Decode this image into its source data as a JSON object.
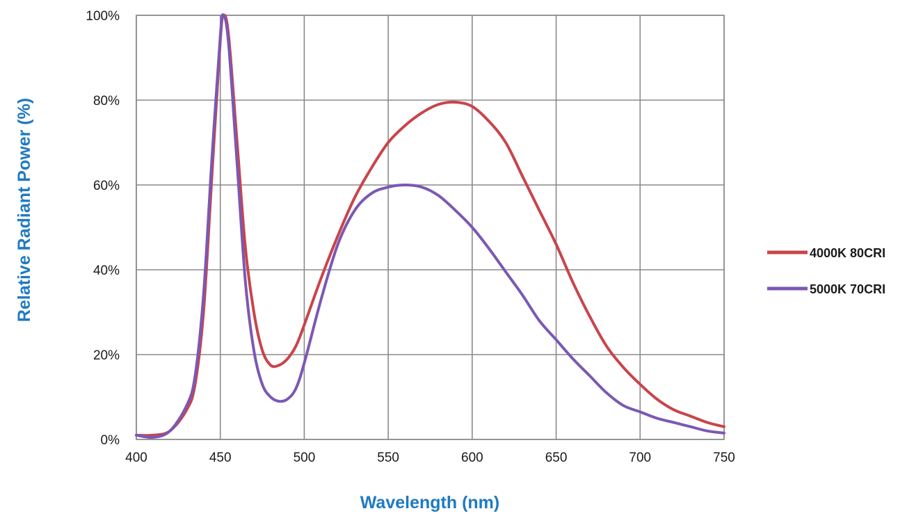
{
  "chart_data": {
    "type": "line",
    "xlabel": "Wavelength (nm)",
    "ylabel": "Relative Radiant Power (%)",
    "xlim": [
      400,
      750
    ],
    "ylim": [
      0,
      100
    ],
    "x_ticks": [
      "400",
      "450",
      "500",
      "550",
      "600",
      "650",
      "700",
      "750"
    ],
    "y_ticks": [
      "0%",
      "20%",
      "40%",
      "60%",
      "80%",
      "100%"
    ],
    "grid": true,
    "legend_position": "right",
    "series": [
      {
        "name": "4000K 80CRI",
        "color": "#c9444a",
        "points": [
          [
            400,
            1
          ],
          [
            410,
            1
          ],
          [
            420,
            2
          ],
          [
            430,
            7
          ],
          [
            435,
            13
          ],
          [
            440,
            30
          ],
          [
            445,
            62
          ],
          [
            450,
            94
          ],
          [
            452,
            100
          ],
          [
            455,
            95
          ],
          [
            460,
            70
          ],
          [
            465,
            45
          ],
          [
            470,
            30
          ],
          [
            475,
            21
          ],
          [
            480,
            17.5
          ],
          [
            485,
            17.5
          ],
          [
            490,
            19
          ],
          [
            495,
            22
          ],
          [
            500,
            27
          ],
          [
            510,
            38
          ],
          [
            520,
            48
          ],
          [
            530,
            57
          ],
          [
            540,
            64
          ],
          [
            550,
            70
          ],
          [
            560,
            74
          ],
          [
            570,
            77
          ],
          [
            580,
            79
          ],
          [
            590,
            79.5
          ],
          [
            600,
            78.5
          ],
          [
            610,
            75
          ],
          [
            620,
            70
          ],
          [
            630,
            62
          ],
          [
            640,
            54
          ],
          [
            650,
            46
          ],
          [
            660,
            37
          ],
          [
            670,
            29
          ],
          [
            680,
            22
          ],
          [
            690,
            17
          ],
          [
            700,
            13
          ],
          [
            710,
            9.5
          ],
          [
            720,
            7
          ],
          [
            730,
            5.5
          ],
          [
            740,
            4
          ],
          [
            750,
            3
          ]
        ]
      },
      {
        "name": "5000K 70CRI",
        "color": "#7b58b4",
        "points": [
          [
            400,
            1
          ],
          [
            410,
            0.5
          ],
          [
            420,
            2
          ],
          [
            430,
            8
          ],
          [
            435,
            15
          ],
          [
            440,
            34
          ],
          [
            445,
            66
          ],
          [
            450,
            95
          ],
          [
            452,
            100
          ],
          [
            455,
            93
          ],
          [
            460,
            65
          ],
          [
            465,
            37
          ],
          [
            470,
            21
          ],
          [
            475,
            13
          ],
          [
            480,
            10
          ],
          [
            485,
            9
          ],
          [
            490,
            9.5
          ],
          [
            495,
            12
          ],
          [
            500,
            18
          ],
          [
            510,
            33
          ],
          [
            520,
            46
          ],
          [
            530,
            54
          ],
          [
            540,
            58
          ],
          [
            550,
            59.5
          ],
          [
            560,
            60
          ],
          [
            570,
            59.5
          ],
          [
            580,
            57.5
          ],
          [
            590,
            54
          ],
          [
            600,
            50
          ],
          [
            610,
            45
          ],
          [
            620,
            39.5
          ],
          [
            630,
            34
          ],
          [
            640,
            28
          ],
          [
            650,
            23.5
          ],
          [
            660,
            19
          ],
          [
            670,
            15
          ],
          [
            680,
            11
          ],
          [
            690,
            8
          ],
          [
            700,
            6.5
          ],
          [
            710,
            5
          ],
          [
            720,
            4
          ],
          [
            730,
            3
          ],
          [
            740,
            2
          ],
          [
            750,
            1.5
          ]
        ]
      }
    ]
  }
}
